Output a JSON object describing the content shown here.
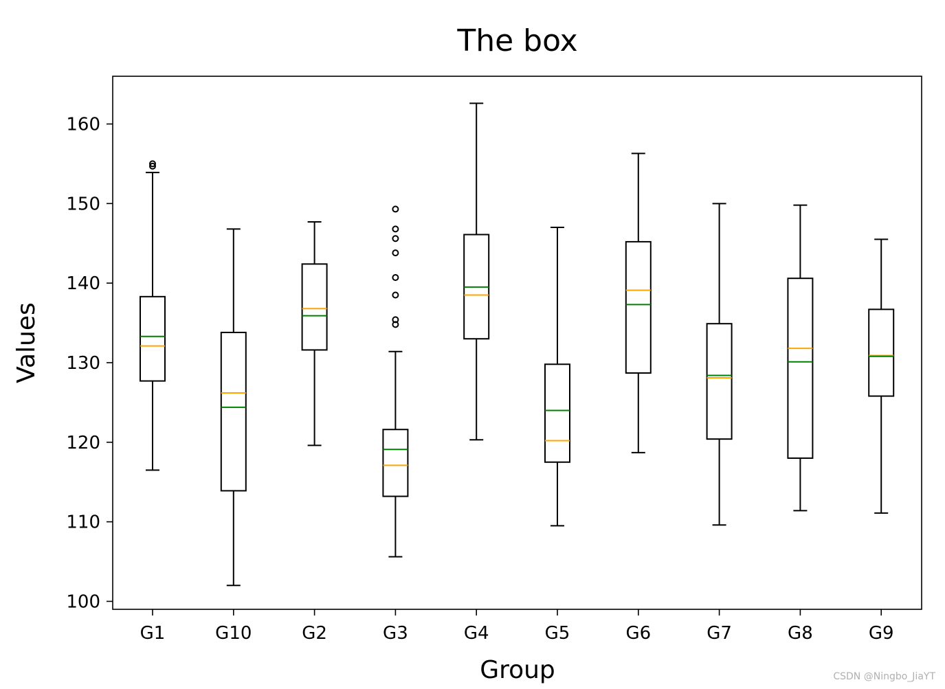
{
  "chart_data": {
    "type": "box",
    "title": "The box",
    "xlabel": "Group",
    "ylabel": "Values",
    "ylim": [
      99,
      166
    ],
    "yticks": [
      100,
      110,
      120,
      130,
      140,
      150,
      160
    ],
    "grid": false,
    "categories": [
      "G1",
      "G10",
      "G2",
      "G3",
      "G4",
      "G5",
      "G6",
      "G7",
      "G8",
      "G9"
    ],
    "boxes": [
      {
        "name": "G1",
        "whisker_low": 116.5,
        "q1": 127.7,
        "median": 132.1,
        "mean": 133.3,
        "q3": 138.3,
        "whisker_high": 153.9,
        "outliers": [
          154.7,
          155.0
        ]
      },
      {
        "name": "G10",
        "whisker_low": 102.0,
        "q1": 113.9,
        "median": 126.2,
        "mean": 124.4,
        "q3": 133.8,
        "whisker_high": 146.8,
        "outliers": []
      },
      {
        "name": "G2",
        "whisker_low": 119.6,
        "q1": 131.6,
        "median": 136.8,
        "mean": 135.9,
        "q3": 142.4,
        "whisker_high": 147.7,
        "outliers": []
      },
      {
        "name": "G3",
        "whisker_low": 105.6,
        "q1": 113.2,
        "median": 117.1,
        "mean": 119.1,
        "q3": 121.6,
        "whisker_high": 131.4,
        "outliers": [
          134.8,
          135.4,
          138.5,
          140.7,
          143.8,
          145.6,
          146.8,
          149.3
        ]
      },
      {
        "name": "G4",
        "whisker_low": 120.3,
        "q1": 133.0,
        "median": 138.5,
        "mean": 139.5,
        "q3": 146.1,
        "whisker_high": 162.6,
        "outliers": []
      },
      {
        "name": "G5",
        "whisker_low": 109.5,
        "q1": 117.5,
        "median": 120.2,
        "mean": 124.0,
        "q3": 129.8,
        "whisker_high": 147.0,
        "outliers": []
      },
      {
        "name": "G6",
        "whisker_low": 118.7,
        "q1": 128.7,
        "median": 139.1,
        "mean": 137.3,
        "q3": 145.2,
        "whisker_high": 156.3,
        "outliers": []
      },
      {
        "name": "G7",
        "whisker_low": 109.6,
        "q1": 120.4,
        "median": 128.1,
        "mean": 128.4,
        "q3": 134.9,
        "whisker_high": 150.0,
        "outliers": []
      },
      {
        "name": "G8",
        "whisker_low": 111.4,
        "q1": 118.0,
        "median": 131.8,
        "mean": 130.1,
        "q3": 140.6,
        "whisker_high": 149.8,
        "outliers": []
      },
      {
        "name": "G9",
        "whisker_low": 111.1,
        "q1": 125.8,
        "median": 130.9,
        "mean": 130.8,
        "q3": 136.7,
        "whisker_high": 145.5,
        "outliers": []
      }
    ],
    "colors": {
      "box": "#000000",
      "median": "#ffa500",
      "mean": "#008000",
      "outlier": "#000000"
    }
  },
  "watermark": "CSDN @Ningbo_JiaYT"
}
